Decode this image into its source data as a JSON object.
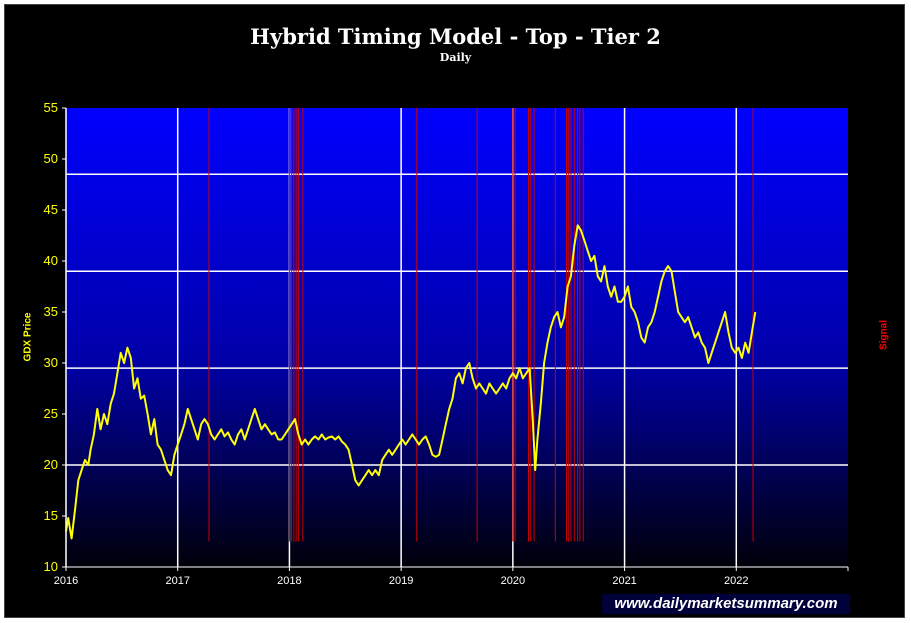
{
  "chart_data": {
    "type": "line",
    "title": "Hybrid Timing Model - Top - Tier 2",
    "subtitle": "Daily",
    "ylabel": "GDX Price",
    "y2label": "Signal",
    "ylim": [
      10,
      55
    ],
    "yticks": [
      "10",
      "15",
      "20",
      "25",
      "30",
      "35",
      "40",
      "45",
      "50",
      "55"
    ],
    "xlim": [
      2016.0,
      2023.0
    ],
    "xticks": [
      "2016",
      "2017",
      "2018",
      "2019",
      "2020",
      "2021",
      "2022"
    ],
    "hgrid": [
      20,
      29.5,
      39,
      48.5
    ],
    "colors": {
      "price": "#ffff00",
      "signal": "#cc0000",
      "grid": "#ffffff",
      "plot_top": "#0000ff",
      "plot_bottom": "#00000a"
    },
    "series": [
      {
        "points": [
          [
            2016.0,
            13.5
          ],
          [
            2016.02,
            14.8
          ],
          [
            2016.05,
            12.8
          ],
          [
            2016.08,
            15.5
          ],
          [
            2016.11,
            18.5
          ],
          [
            2016.14,
            19.5
          ],
          [
            2016.17,
            20.5
          ],
          [
            2016.2,
            20.0
          ],
          [
            2016.22,
            21.5
          ],
          [
            2016.25,
            23.0
          ],
          [
            2016.28,
            25.5
          ],
          [
            2016.31,
            23.5
          ],
          [
            2016.34,
            25.0
          ],
          [
            2016.37,
            24.0
          ],
          [
            2016.4,
            26.0
          ],
          [
            2016.43,
            27.0
          ],
          [
            2016.46,
            29.0
          ],
          [
            2016.49,
            31.0
          ],
          [
            2016.52,
            30.0
          ],
          [
            2016.55,
            31.5
          ],
          [
            2016.58,
            30.5
          ],
          [
            2016.61,
            27.5
          ],
          [
            2016.64,
            28.5
          ],
          [
            2016.67,
            26.5
          ],
          [
            2016.7,
            26.8
          ],
          [
            2016.73,
            25.0
          ],
          [
            2016.76,
            23.0
          ],
          [
            2016.79,
            24.5
          ],
          [
            2016.82,
            22.0
          ],
          [
            2016.85,
            21.5
          ],
          [
            2016.88,
            20.5
          ],
          [
            2016.91,
            19.5
          ],
          [
            2016.94,
            19.0
          ],
          [
            2016.97,
            21.0
          ],
          [
            2017.0,
            22.0
          ],
          [
            2017.03,
            23.0
          ],
          [
            2017.06,
            24.0
          ],
          [
            2017.09,
            25.5
          ],
          [
            2017.12,
            24.5
          ],
          [
            2017.15,
            23.5
          ],
          [
            2017.18,
            22.5
          ],
          [
            2017.21,
            24.0
          ],
          [
            2017.24,
            24.5
          ],
          [
            2017.27,
            24.0
          ],
          [
            2017.3,
            23.0
          ],
          [
            2017.33,
            22.5
          ],
          [
            2017.36,
            23.0
          ],
          [
            2017.39,
            23.5
          ],
          [
            2017.42,
            22.8
          ],
          [
            2017.45,
            23.2
          ],
          [
            2017.48,
            22.5
          ],
          [
            2017.51,
            22.0
          ],
          [
            2017.54,
            23.0
          ],
          [
            2017.57,
            23.5
          ],
          [
            2017.6,
            22.5
          ],
          [
            2017.63,
            23.5
          ],
          [
            2017.66,
            24.5
          ],
          [
            2017.69,
            25.5
          ],
          [
            2017.72,
            24.5
          ],
          [
            2017.75,
            23.5
          ],
          [
            2017.78,
            24.0
          ],
          [
            2017.81,
            23.5
          ],
          [
            2017.84,
            23.0
          ],
          [
            2017.87,
            23.2
          ],
          [
            2017.9,
            22.5
          ],
          [
            2017.93,
            22.5
          ],
          [
            2017.96,
            23.0
          ],
          [
            2017.99,
            23.5
          ],
          [
            2018.02,
            24.0
          ],
          [
            2018.05,
            24.5
          ],
          [
            2018.08,
            23.0
          ],
          [
            2018.11,
            22.0
          ],
          [
            2018.14,
            22.5
          ],
          [
            2018.17,
            22.0
          ],
          [
            2018.2,
            22.5
          ],
          [
            2018.23,
            22.8
          ],
          [
            2018.26,
            22.5
          ],
          [
            2018.29,
            23.0
          ],
          [
            2018.32,
            22.5
          ],
          [
            2018.35,
            22.7
          ],
          [
            2018.38,
            22.8
          ],
          [
            2018.41,
            22.5
          ],
          [
            2018.44,
            22.8
          ],
          [
            2018.47,
            22.3
          ],
          [
            2018.5,
            22.0
          ],
          [
            2018.53,
            21.5
          ],
          [
            2018.56,
            20.0
          ],
          [
            2018.59,
            18.5
          ],
          [
            2018.62,
            18.0
          ],
          [
            2018.65,
            18.5
          ],
          [
            2018.68,
            19.0
          ],
          [
            2018.71,
            19.5
          ],
          [
            2018.74,
            19.0
          ],
          [
            2018.77,
            19.5
          ],
          [
            2018.8,
            19.0
          ],
          [
            2018.83,
            20.5
          ],
          [
            2018.86,
            21.0
          ],
          [
            2018.89,
            21.5
          ],
          [
            2018.92,
            21.0
          ],
          [
            2018.95,
            21.5
          ],
          [
            2018.98,
            22.0
          ],
          [
            2019.01,
            22.5
          ],
          [
            2019.04,
            22.0
          ],
          [
            2019.07,
            22.5
          ],
          [
            2019.1,
            23.0
          ],
          [
            2019.13,
            22.5
          ],
          [
            2019.16,
            22.0
          ],
          [
            2019.19,
            22.5
          ],
          [
            2019.22,
            22.8
          ],
          [
            2019.25,
            22.0
          ],
          [
            2019.28,
            21.0
          ],
          [
            2019.31,
            20.8
          ],
          [
            2019.34,
            21.0
          ],
          [
            2019.37,
            22.5
          ],
          [
            2019.4,
            24.0
          ],
          [
            2019.43,
            25.5
          ],
          [
            2019.46,
            26.5
          ],
          [
            2019.49,
            28.5
          ],
          [
            2019.52,
            29.0
          ],
          [
            2019.55,
            28.0
          ],
          [
            2019.58,
            29.5
          ],
          [
            2019.61,
            30.0
          ],
          [
            2019.64,
            28.5
          ],
          [
            2019.67,
            27.5
          ],
          [
            2019.7,
            28.0
          ],
          [
            2019.73,
            27.5
          ],
          [
            2019.76,
            27.0
          ],
          [
            2019.79,
            28.0
          ],
          [
            2019.82,
            27.5
          ],
          [
            2019.85,
            27.0
          ],
          [
            2019.88,
            27.5
          ],
          [
            2019.91,
            28.0
          ],
          [
            2019.94,
            27.5
          ],
          [
            2019.97,
            28.5
          ],
          [
            2020.0,
            29.0
          ],
          [
            2020.03,
            28.5
          ],
          [
            2020.06,
            29.5
          ],
          [
            2020.09,
            28.5
          ],
          [
            2020.12,
            29.0
          ],
          [
            2020.15,
            29.5
          ],
          [
            2020.18,
            24.0
          ],
          [
            2020.2,
            19.5
          ],
          [
            2020.22,
            22.5
          ],
          [
            2020.25,
            26.0
          ],
          [
            2020.28,
            30.0
          ],
          [
            2020.31,
            32.0
          ],
          [
            2020.34,
            33.5
          ],
          [
            2020.37,
            34.5
          ],
          [
            2020.4,
            35.0
          ],
          [
            2020.43,
            33.5
          ],
          [
            2020.46,
            34.5
          ],
          [
            2020.49,
            37.5
          ],
          [
            2020.52,
            38.5
          ],
          [
            2020.55,
            41.5
          ],
          [
            2020.58,
            43.5
          ],
          [
            2020.61,
            43.0
          ],
          [
            2020.64,
            42.0
          ],
          [
            2020.67,
            41.0
          ],
          [
            2020.7,
            40.0
          ],
          [
            2020.73,
            40.5
          ],
          [
            2020.76,
            38.5
          ],
          [
            2020.79,
            38.0
          ],
          [
            2020.82,
            39.5
          ],
          [
            2020.85,
            37.5
          ],
          [
            2020.88,
            36.5
          ],
          [
            2020.91,
            37.5
          ],
          [
            2020.94,
            36.0
          ],
          [
            2020.97,
            36.0
          ],
          [
            2021.0,
            36.5
          ],
          [
            2021.03,
            37.5
          ],
          [
            2021.06,
            35.5
          ],
          [
            2021.09,
            35.0
          ],
          [
            2021.12,
            34.0
          ],
          [
            2021.15,
            32.5
          ],
          [
            2021.18,
            32.0
          ],
          [
            2021.21,
            33.5
          ],
          [
            2021.24,
            34.0
          ],
          [
            2021.27,
            35.0
          ],
          [
            2021.3,
            36.5
          ],
          [
            2021.33,
            38.0
          ],
          [
            2021.36,
            39.0
          ],
          [
            2021.39,
            39.5
          ],
          [
            2021.42,
            39.0
          ],
          [
            2021.45,
            37.0
          ],
          [
            2021.48,
            35.0
          ],
          [
            2021.51,
            34.5
          ],
          [
            2021.54,
            34.0
          ],
          [
            2021.57,
            34.5
          ],
          [
            2021.6,
            33.5
          ],
          [
            2021.63,
            32.5
          ],
          [
            2021.66,
            33.0
          ],
          [
            2021.69,
            32.0
          ],
          [
            2021.72,
            31.5
          ],
          [
            2021.75,
            30.0
          ],
          [
            2021.78,
            31.0
          ],
          [
            2021.81,
            32.0
          ],
          [
            2021.84,
            33.0
          ],
          [
            2021.87,
            34.0
          ],
          [
            2021.9,
            35.0
          ],
          [
            2021.93,
            33.0
          ],
          [
            2021.96,
            31.5
          ],
          [
            2021.99,
            31.0
          ],
          [
            2022.02,
            31.5
          ],
          [
            2022.05,
            30.5
          ],
          [
            2022.08,
            32.0
          ],
          [
            2022.11,
            31.0
          ],
          [
            2022.14,
            33.0
          ],
          [
            2022.17,
            35.0
          ]
        ]
      }
    ],
    "signals": [
      2017.28,
      2018.0,
      2018.02,
      2018.04,
      2018.06,
      2018.08,
      2018.12,
      2019.14,
      2019.68,
      2020.0,
      2020.02,
      2020.14,
      2020.16,
      2020.19,
      2020.38,
      2020.48,
      2020.5,
      2020.52,
      2020.55,
      2020.58,
      2020.6,
      2020.63,
      2022.15
    ],
    "signal_floor": 12.5
  },
  "watermark": "www.dailymarketsummary.com"
}
